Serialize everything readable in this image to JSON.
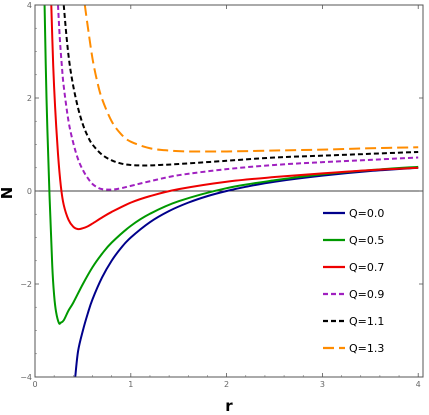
{
  "chart_data": {
    "type": "line",
    "xlabel": "r",
    "ylabel": "N",
    "xlim": [
      0,
      4.05
    ],
    "ylim": [
      -4,
      4
    ],
    "x_ticks": [
      "0",
      "1",
      "2",
      "3",
      "4"
    ],
    "y_ticks": [
      "−4",
      "−2",
      "0",
      "2",
      "4"
    ],
    "legend_position": "lower-right",
    "grid": false,
    "series": [
      {
        "name": "Q=0.0",
        "color": "#00008b",
        "dash": "solid",
        "x": [
          0.42,
          0.45,
          0.5,
          0.55,
          0.6,
          0.7,
          0.8,
          0.9,
          1.0,
          1.2,
          1.4,
          1.6,
          1.8,
          2.0,
          2.2,
          2.5,
          3.0,
          3.5,
          4.0
        ],
        "y": [
          -4.0,
          -3.44,
          -3.0,
          -2.64,
          -2.33,
          -1.86,
          -1.5,
          -1.22,
          -1.0,
          -0.67,
          -0.43,
          -0.25,
          -0.11,
          0.0,
          0.09,
          0.2,
          0.33,
          0.43,
          0.5
        ]
      },
      {
        "name": "Q=0.5",
        "color": "#009900",
        "dash": "solid",
        "x": [
          0.1,
          0.12,
          0.15,
          0.18,
          0.2,
          0.22,
          0.25,
          0.27,
          0.3,
          0.35,
          0.4,
          0.5,
          0.6,
          0.7,
          0.8,
          1.0,
          1.2,
          1.5,
          2.0,
          2.5,
          3.0,
          3.5,
          4.0
        ],
        "y": [
          4.0,
          2.0,
          0.0,
          -1.6,
          -2.25,
          -2.6,
          -2.84,
          -2.83,
          -2.78,
          -2.57,
          -2.4,
          -2.0,
          -1.64,
          -1.35,
          -1.11,
          -0.75,
          -0.49,
          -0.22,
          0.06,
          0.23,
          0.36,
          0.45,
          0.52
        ]
      },
      {
        "name": "Q=0.7",
        "color": "#ee0000",
        "dash": "solid",
        "x": [
          0.17,
          0.19,
          0.21,
          0.24,
          0.27,
          0.3,
          0.35,
          0.4,
          0.45,
          0.5,
          0.55,
          0.6,
          0.7,
          0.8,
          1.0,
          1.2,
          1.5,
          2.0,
          2.5,
          3.0,
          3.5,
          4.0
        ],
        "y": [
          4.0,
          2.7,
          1.8,
          0.8,
          0.1,
          -0.3,
          -0.62,
          -0.77,
          -0.82,
          -0.8,
          -0.76,
          -0.7,
          -0.57,
          -0.45,
          -0.25,
          -0.11,
          0.04,
          0.2,
          0.3,
          0.38,
          0.45,
          0.5
        ]
      },
      {
        "name": "Q=0.9",
        "color": "#a020c0",
        "dash": "dashed",
        "x": [
          0.24,
          0.26,
          0.28,
          0.3,
          0.35,
          0.4,
          0.45,
          0.5,
          0.55,
          0.6,
          0.65,
          0.7,
          0.8,
          0.9,
          1.0,
          1.2,
          1.5,
          2.0,
          2.5,
          3.0,
          3.5,
          4.0
        ],
        "y": [
          4.0,
          3.25,
          2.7,
          2.25,
          1.5,
          1.03,
          0.68,
          0.45,
          0.28,
          0.15,
          0.08,
          0.04,
          0.03,
          0.06,
          0.11,
          0.21,
          0.34,
          0.47,
          0.56,
          0.62,
          0.67,
          0.72
        ]
      },
      {
        "name": "Q=1.1",
        "color": "#000000",
        "dash": "dashed",
        "x": [
          0.3,
          0.33,
          0.36,
          0.4,
          0.45,
          0.5,
          0.55,
          0.6,
          0.7,
          0.8,
          0.9,
          1.0,
          1.1,
          1.2,
          1.3,
          1.5,
          2.0,
          2.5,
          3.0,
          3.5,
          4.0
        ],
        "y": [
          4.0,
          3.3,
          2.75,
          2.25,
          1.78,
          1.43,
          1.18,
          1.0,
          0.78,
          0.66,
          0.59,
          0.56,
          0.55,
          0.55,
          0.56,
          0.58,
          0.65,
          0.72,
          0.76,
          0.8,
          0.84
        ]
      },
      {
        "name": "Q=1.3",
        "color": "#ff8c00",
        "dash": "longdash",
        "x": [
          0.52,
          0.55,
          0.6,
          0.65,
          0.7,
          0.8,
          0.9,
          1.0,
          1.2,
          1.4,
          1.6,
          1.8,
          2.0,
          2.5,
          3.0,
          3.5,
          4.0
        ],
        "y": [
          4.0,
          3.55,
          2.85,
          2.35,
          1.98,
          1.5,
          1.22,
          1.06,
          0.92,
          0.87,
          0.85,
          0.85,
          0.85,
          0.87,
          0.89,
          0.92,
          0.94
        ]
      }
    ]
  }
}
